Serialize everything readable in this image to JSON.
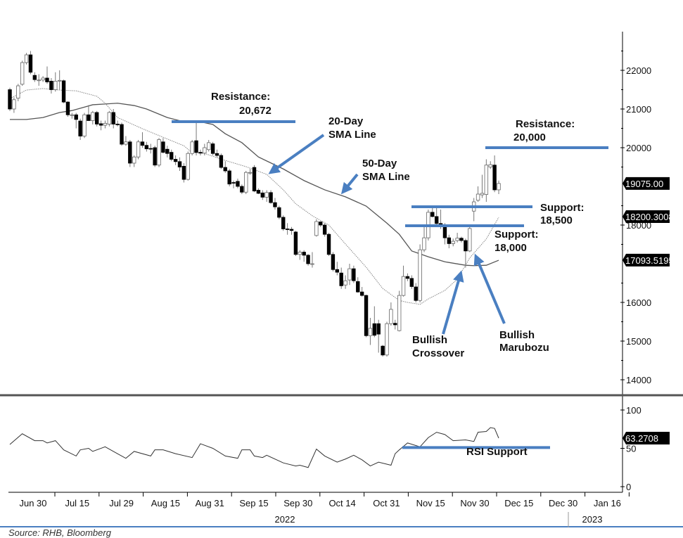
{
  "chart_data": {
    "type": "candlestick",
    "title": "",
    "price_axis": {
      "ylim": [
        13800,
        22800
      ],
      "ticks": [
        "22000",
        "21000",
        "20000",
        "18000",
        "16000",
        "15000",
        "14000"
      ]
    },
    "last_value_tags": {
      "close": "19075.00",
      "sma20": "18200.3008",
      "sma50": "17093.5195",
      "rsi": "63.2708"
    },
    "x_ticks": [
      "Jun 30",
      "Jul 15",
      "Jul 29",
      "Aug 15",
      "Aug 31",
      "Sep 15",
      "Sep 30",
      "Oct 14",
      "Oct 31",
      "Nov 15",
      "Nov 30",
      "Dec 15",
      "Dec 30",
      "Jan 16"
    ],
    "years": [
      "2022",
      "2023"
    ],
    "candles_ohlc": [
      [
        21500,
        21550,
        20950,
        21000
      ],
      [
        21000,
        21300,
        20900,
        21240
      ],
      [
        21280,
        21650,
        21200,
        21600
      ],
      [
        21640,
        22250,
        21600,
        22200
      ],
      [
        22200,
        22450,
        22150,
        22400
      ],
      [
        22400,
        22500,
        21900,
        21950
      ],
      [
        21870,
        21950,
        21700,
        21760
      ],
      [
        21750,
        21900,
        21600,
        21750
      ],
      [
        21750,
        21850,
        21700,
        21800
      ],
      [
        21800,
        22100,
        21650,
        21700
      ],
      [
        21720,
        21800,
        21400,
        21500
      ],
      [
        21500,
        21950,
        21450,
        21720
      ],
      [
        21740,
        22000,
        21500,
        21740
      ],
      [
        21730,
        21760,
        21150,
        21180
      ],
      [
        21180,
        21200,
        20800,
        20850
      ],
      [
        20850,
        20900,
        20750,
        20850
      ],
      [
        20850,
        20900,
        20500,
        20730
      ],
      [
        20690,
        20750,
        20200,
        20300
      ],
      [
        20300,
        20900,
        20250,
        20850
      ],
      [
        20850,
        21100,
        20700,
        20700
      ],
      [
        20700,
        20950,
        20600,
        20910
      ],
      [
        20910,
        20950,
        20550,
        20610
      ],
      [
        20620,
        20700,
        20450,
        20580
      ],
      [
        20580,
        20700,
        20500,
        20630
      ],
      [
        20610,
        20950,
        20550,
        20910
      ],
      [
        20910,
        21000,
        20500,
        20610
      ],
      [
        20610,
        20700,
        20550,
        20600
      ],
      [
        20600,
        20650,
        20050,
        20090
      ],
      [
        20090,
        20300,
        20050,
        20150
      ],
      [
        20150,
        20200,
        19500,
        19600
      ],
      [
        19600,
        19800,
        19500,
        19760
      ],
      [
        19760,
        20200,
        19700,
        20150
      ],
      [
        20150,
        20400,
        20000,
        20060
      ],
      [
        20060,
        20150,
        19900,
        19970
      ],
      [
        19980,
        20100,
        19850,
        19970
      ],
      [
        20000,
        20050,
        19500,
        19550
      ],
      [
        19550,
        20250,
        19500,
        20210
      ],
      [
        20150,
        20250,
        19850,
        19880
      ],
      [
        19960,
        20050,
        19750,
        19850
      ],
      [
        19880,
        19950,
        19650,
        19700
      ],
      [
        19700,
        19800,
        19550,
        19640
      ],
      [
        19640,
        19750,
        19400,
        19500
      ],
      [
        19520,
        19600,
        19100,
        19180
      ],
      [
        19180,
        19900,
        19150,
        19850
      ],
      [
        19850,
        20200,
        19800,
        20150
      ],
      [
        20180,
        20650,
        19800,
        19880
      ],
      [
        19880,
        19950,
        19800,
        19860
      ],
      [
        19860,
        20100,
        19800,
        20000
      ],
      [
        19950,
        20200,
        19900,
        20130
      ],
      [
        20100,
        20150,
        19800,
        19850
      ],
      [
        19850,
        19950,
        19750,
        19800
      ],
      [
        19800,
        19850,
        19450,
        19490
      ],
      [
        19490,
        19650,
        19350,
        19400
      ],
      [
        19400,
        19450,
        19000,
        19060
      ],
      [
        19100,
        19150,
        18950,
        19090
      ],
      [
        19130,
        19200,
        18950,
        19000
      ],
      [
        19000,
        19050,
        18800,
        18850
      ],
      [
        18850,
        19400,
        18800,
        19360
      ],
      [
        19360,
        19450,
        19300,
        19360
      ],
      [
        19490,
        19550,
        18850,
        18880
      ],
      [
        18900,
        18950,
        18800,
        18820
      ],
      [
        18830,
        18900,
        18650,
        18720
      ],
      [
        18720,
        18900,
        18600,
        18840
      ],
      [
        18840,
        18900,
        18550,
        18580
      ],
      [
        18580,
        18700,
        18400,
        18470
      ],
      [
        18450,
        18500,
        18150,
        18200
      ],
      [
        18200,
        18250,
        17850,
        17900
      ],
      [
        17900,
        18050,
        17750,
        17890
      ],
      [
        17890,
        17950,
        17750,
        17860
      ],
      [
        17820,
        17850,
        17200,
        17240
      ],
      [
        17240,
        17350,
        17100,
        17300
      ],
      [
        17300,
        17350,
        17050,
        17220
      ],
      [
        17220,
        17250,
        16950,
        17000
      ],
      [
        17000,
        17300,
        16900,
        17000
      ],
      [
        17730,
        18150,
        17700,
        18090
      ],
      [
        18080,
        18100,
        17950,
        18000
      ],
      [
        18000,
        18050,
        17700,
        17760
      ],
      [
        17760,
        17800,
        17200,
        17240
      ],
      [
        17240,
        17300,
        16800,
        16850
      ],
      [
        16850,
        17050,
        16700,
        16780
      ],
      [
        16760,
        16900,
        16350,
        16430
      ],
      [
        16450,
        16700,
        16350,
        16560
      ],
      [
        16580,
        17000,
        16450,
        16870
      ],
      [
        16870,
        16950,
        16500,
        16560
      ],
      [
        16540,
        16650,
        16250,
        16270
      ],
      [
        16270,
        16400,
        16150,
        16180
      ],
      [
        16180,
        16200,
        15100,
        15140
      ],
      [
        15140,
        15600,
        14900,
        15330
      ],
      [
        15450,
        15900,
        15100,
        15150
      ],
      [
        15450,
        15550,
        14700,
        15180
      ],
      [
        14870,
        14900,
        14600,
        14640
      ],
      [
        14640,
        15500,
        14600,
        15450
      ],
      [
        15450,
        16000,
        15400,
        15820
      ],
      [
        15460,
        15550,
        15300,
        15420
      ],
      [
        15270,
        16300,
        15250,
        16180
      ],
      [
        16180,
        16950,
        16150,
        16670
      ],
      [
        16670,
        16750,
        16550,
        16620
      ],
      [
        16620,
        16700,
        16350,
        16410
      ],
      [
        16400,
        16500,
        16000,
        16050
      ],
      [
        16050,
        17500,
        16000,
        17360
      ],
      [
        17360,
        18000,
        17300,
        17670
      ],
      [
        17670,
        18400,
        17600,
        18330
      ],
      [
        18330,
        18450,
        18200,
        18220
      ],
      [
        18220,
        18450,
        18000,
        18040
      ],
      [
        18040,
        18400,
        17900,
        17960
      ],
      [
        17950,
        18050,
        17500,
        17670
      ],
      [
        17670,
        17750,
        17400,
        17520
      ],
      [
        17520,
        17650,
        17450,
        17580
      ],
      [
        17600,
        17800,
        17550,
        17660
      ],
      [
        17660,
        17700,
        17550,
        17600
      ],
      [
        17600,
        17650,
        16900,
        17330
      ],
      [
        17330,
        17950,
        17300,
        17910
      ],
      [
        18360,
        18700,
        18100,
        18600
      ],
      [
        18640,
        19000,
        18600,
        18800
      ],
      [
        18780,
        19300,
        18700,
        18820
      ],
      [
        18790,
        19700,
        18600,
        19550
      ],
      [
        19500,
        19650,
        19450,
        19560
      ],
      [
        19550,
        19800,
        18850,
        18910
      ],
      [
        18910,
        19150,
        18800,
        19075
      ]
    ],
    "sma20_points": [
      [
        0,
        21270
      ],
      [
        4,
        21490
      ],
      [
        8,
        21530
      ],
      [
        12,
        21490
      ],
      [
        16,
        21470
      ],
      [
        21,
        21330
      ],
      [
        23,
        21150
      ],
      [
        26,
        20780
      ],
      [
        32,
        20490
      ],
      [
        37,
        20270
      ],
      [
        42,
        20050
      ],
      [
        44,
        19870
      ],
      [
        47,
        19850
      ],
      [
        52,
        19670
      ],
      [
        57,
        19510
      ],
      [
        62,
        19310
      ],
      [
        66,
        18910
      ],
      [
        69,
        18550
      ],
      [
        73,
        18240
      ],
      [
        77,
        18000
      ],
      [
        81,
        17510
      ],
      [
        86,
        16910
      ],
      [
        90,
        16360
      ],
      [
        94,
        16050
      ],
      [
        96,
        16000
      ],
      [
        99,
        15950
      ],
      [
        101,
        16090
      ],
      [
        105,
        16310
      ],
      [
        108,
        16600
      ],
      [
        111,
        17150
      ],
      [
        115,
        17640
      ],
      [
        118,
        18200
      ]
    ],
    "sma50_points": [
      [
        0,
        20730
      ],
      [
        4,
        20730
      ],
      [
        8,
        20780
      ],
      [
        12,
        20910
      ],
      [
        15,
        20960
      ],
      [
        20,
        21110
      ],
      [
        23,
        21130
      ],
      [
        26,
        21150
      ],
      [
        30,
        21090
      ],
      [
        33,
        21000
      ],
      [
        38,
        20780
      ],
      [
        42,
        20670
      ],
      [
        45,
        20690
      ],
      [
        49,
        20600
      ],
      [
        52,
        20360
      ],
      [
        56,
        20130
      ],
      [
        60,
        19760
      ],
      [
        66,
        19450
      ],
      [
        71,
        19150
      ],
      [
        76,
        18910
      ],
      [
        81,
        18730
      ],
      [
        86,
        18490
      ],
      [
        91,
        18050
      ],
      [
        94,
        17760
      ],
      [
        97,
        17330
      ],
      [
        101,
        17180
      ],
      [
        105,
        17050
      ],
      [
        110,
        16960
      ],
      [
        112,
        16950
      ],
      [
        115,
        16960
      ],
      [
        118,
        17090
      ]
    ],
    "rsi": {
      "ylim": [
        0,
        100
      ],
      "ticks": [
        "100",
        "50",
        "0"
      ],
      "points": [
        [
          0,
          55
        ],
        [
          3,
          69
        ],
        [
          6,
          60
        ],
        [
          8,
          60
        ],
        [
          9,
          57
        ],
        [
          11,
          60
        ],
        [
          13,
          48
        ],
        [
          16,
          40
        ],
        [
          17,
          48
        ],
        [
          19,
          50
        ],
        [
          20,
          46
        ],
        [
          23,
          52
        ],
        [
          26,
          43
        ],
        [
          28,
          37
        ],
        [
          30,
          46
        ],
        [
          34,
          40
        ],
        [
          35,
          48
        ],
        [
          37,
          48
        ],
        [
          40,
          43
        ],
        [
          44,
          38
        ],
        [
          46,
          56
        ],
        [
          49,
          50
        ],
        [
          52,
          40
        ],
        [
          55,
          37
        ],
        [
          56,
          48
        ],
        [
          58,
          48
        ],
        [
          59,
          40
        ],
        [
          61,
          38
        ],
        [
          62,
          41
        ],
        [
          66,
          31
        ],
        [
          69,
          27
        ],
        [
          70,
          28
        ],
        [
          72,
          25
        ],
        [
          74,
          49
        ],
        [
          76,
          40
        ],
        [
          79,
          32
        ],
        [
          81,
          36
        ],
        [
          83,
          41
        ],
        [
          85,
          35
        ],
        [
          87,
          27
        ],
        [
          89,
          32
        ],
        [
          92,
          28
        ],
        [
          93,
          43
        ],
        [
          94,
          48
        ],
        [
          96,
          57
        ],
        [
          99,
          52
        ],
        [
          101,
          64
        ],
        [
          103,
          71
        ],
        [
          105,
          68
        ],
        [
          107,
          60
        ],
        [
          110,
          61
        ],
        [
          112,
          59
        ],
        [
          113,
          71
        ],
        [
          115,
          72
        ],
        [
          116,
          77
        ],
        [
          117,
          76
        ],
        [
          118,
          63.3
        ]
      ]
    },
    "annotations": {
      "resistance_1": {
        "label": "Resistance:",
        "value": "20,672",
        "level": 20672
      },
      "resistance_2": {
        "label": "Resistance:",
        "value": "20,000",
        "level": 20000
      },
      "support_1": {
        "label": "Support:",
        "value": "18,500",
        "level": 18500
      },
      "support_2": {
        "label": "Support:",
        "value": "18,000",
        "level": 18000
      },
      "sma20_label": [
        "20-Day",
        "SMA Line"
      ],
      "sma50_label": [
        "50-Day",
        "SMA Line"
      ],
      "crossover_label": [
        "Bullish",
        "Crossover"
      ],
      "marubozu_label": [
        "Bullish",
        "Marubozu"
      ],
      "rsi_support": {
        "label": "RSI Support",
        "level": 52
      }
    },
    "colors": {
      "annotation": "#4a7fc1",
      "bear": "#000000",
      "bull": "#ffffff",
      "sma20": "#888888",
      "sma50": "#555555",
      "rsi": "#333333"
    }
  },
  "source": "Source: RHB, Bloomberg"
}
